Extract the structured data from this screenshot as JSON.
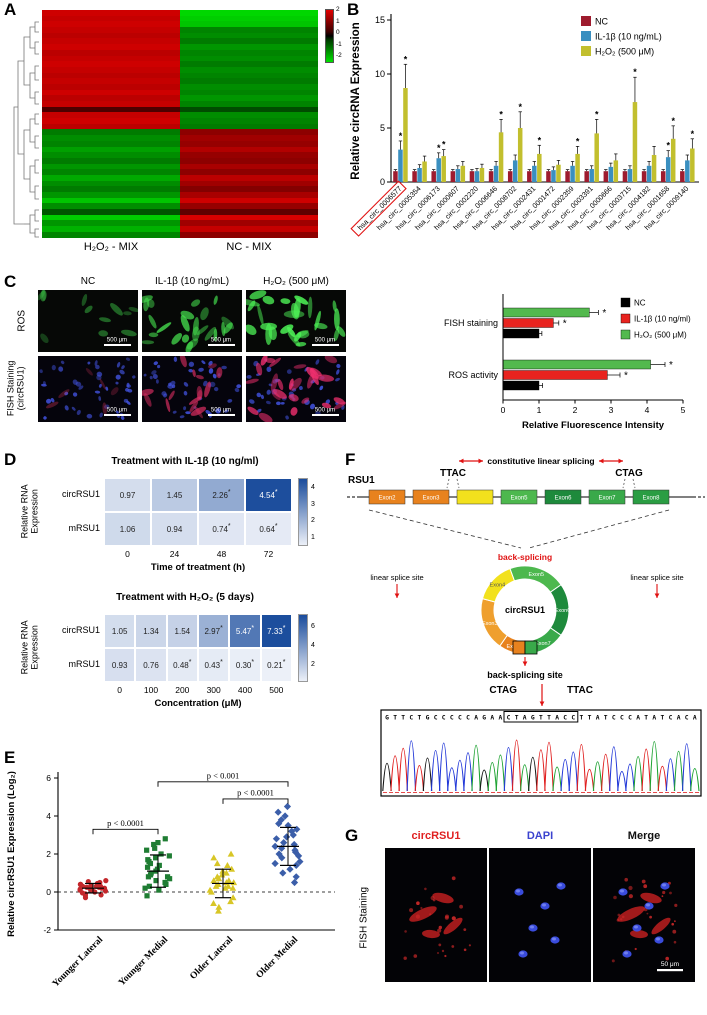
{
  "panels": {
    "A": {
      "label": "A"
    },
    "B": {
      "label": "B"
    },
    "C": {
      "label": "C",
      "col_headers": [
        "NC",
        "IL-1β (10 ng/mL)",
        "H₂O₂ (500 μM)"
      ],
      "row_labels": [
        "ROS",
        "FISH Staining (circRSU1)"
      ],
      "scalebar": "500 μm"
    },
    "D": {
      "label": "D"
    },
    "E": {
      "label": "E"
    },
    "F": {
      "label": "F",
      "gene_label": "RSU1",
      "splicing_label": "constitutive linear splicing",
      "ttac": "TTAC",
      "ctag": "CTAG",
      "exons": [
        {
          "name": "Exon2",
          "color": "#e8821e"
        },
        {
          "name": "Exon3",
          "color": "#e8821e"
        },
        {
          "name": "",
          "color": "#f2e11d"
        },
        {
          "name": "Exon5",
          "color": "#4db84e"
        },
        {
          "name": "Exon6",
          "color": "#1e8a3c"
        },
        {
          "name": "Exon7",
          "color": "#39a94a"
        },
        {
          "name": "Exon8",
          "color": "#2a9d43"
        }
      ],
      "back_splicing_label": "back-splicing",
      "circle_label": "circRSU1",
      "circle_segments": [
        {
          "name": "Exon5",
          "from": -20,
          "to": 55,
          "color": "#4db84e"
        },
        {
          "name": "Exon6",
          "from": 55,
          "to": 125,
          "color": "#1e8a3c"
        },
        {
          "name": "Exon7",
          "from": 125,
          "to": 178,
          "color": "#39a94a"
        },
        {
          "name": "Exon2",
          "from": 178,
          "to": 215,
          "color": "#e8821e"
        },
        {
          "name": "Exon3",
          "from": 215,
          "to": 285,
          "color": "#ef9f2e"
        },
        {
          "name": "Exon4",
          "from": 285,
          "to": 340,
          "color": "#f2e11d",
          "dark": true
        }
      ],
      "linear_site_label": "linear splice site",
      "back_site_label": "back-splicing site",
      "junction_left": "CTAG",
      "junction_right": "TTAC",
      "sequence": "GTTCTGCCCCCAGAACTAGTTACCTTATCCCATATCACA",
      "box_start": 15,
      "box_end": 23,
      "base_colors": {
        "A": "#1ea332",
        "C": "#2238d8",
        "G": "#141414",
        "T": "#e01e1e"
      }
    },
    "G": {
      "label": "G",
      "row_label": "FISH Staining",
      "titles": [
        {
          "text": "circRSU1",
          "color": "#e02020"
        },
        {
          "text": "DAPI",
          "color": "#3b43cf"
        },
        {
          "text": "Merge",
          "color": "#111111"
        }
      ],
      "scalebar": "50 μm"
    }
  },
  "chart_data": [
    {
      "type": "heatmap",
      "panel": "A",
      "columns": [
        "H₂O₂ - MIX",
        "NC - MIX"
      ],
      "colorbar_ticks": [
        2,
        1,
        0,
        -1,
        -2
      ],
      "value_range": [
        -2,
        2
      ],
      "rows": [
        [
          1.9,
          -2.0
        ],
        [
          1.8,
          -1.9
        ],
        [
          1.9,
          -1.8
        ],
        [
          1.8,
          -1.1
        ],
        [
          1.7,
          -1.2
        ],
        [
          1.8,
          -1.0
        ],
        [
          1.9,
          -1.3
        ],
        [
          1.7,
          -1.1
        ],
        [
          1.8,
          -1.2
        ],
        [
          1.9,
          -1.0
        ],
        [
          1.8,
          -1.2
        ],
        [
          1.7,
          -1.1
        ],
        [
          1.8,
          -1.0
        ],
        [
          1.7,
          -1.2
        ],
        [
          1.9,
          -1.1
        ],
        [
          1.7,
          -1.3
        ],
        [
          1.8,
          -1.1
        ],
        [
          0.5,
          -0.5
        ],
        [
          1.8,
          -1.2
        ],
        [
          1.9,
          -1.1
        ],
        [
          1.7,
          -1.0
        ],
        [
          -1.0,
          1.2
        ],
        [
          -1.2,
          1.4
        ],
        [
          -1.1,
          1.3
        ],
        [
          -1.4,
          1.6
        ],
        [
          -1.2,
          1.3
        ],
        [
          -1.0,
          1.2
        ],
        [
          -1.3,
          1.5
        ],
        [
          -1.1,
          1.2
        ],
        [
          -1.5,
          1.7
        ],
        [
          -1.2,
          1.4
        ],
        [
          -1.0,
          1.1
        ],
        [
          -1.3,
          1.5
        ],
        [
          -1.8,
          1.9
        ],
        [
          -1.2,
          1.3
        ],
        [
          -0.6,
          0.7
        ],
        [
          -1.9,
          2.0
        ],
        [
          -1.3,
          1.4
        ],
        [
          -1.6,
          1.8
        ],
        [
          -1.1,
          1.2
        ]
      ]
    },
    {
      "type": "bar",
      "panel": "B",
      "ylabel": "Relative circRNA Expression",
      "ymax": 15,
      "yticks": [
        0,
        5,
        10,
        15
      ],
      "highlight_category": 0,
      "categories": [
        "hsa_circ_0006577",
        "hsa_circ_0005354",
        "hsa_circ_0006173",
        "hsa_circ_0000607",
        "hsa_circ_0002220",
        "hsa_circ_0006646",
        "hsa_circ_0008702",
        "hsa_circ_0002431",
        "hsa_circ_0001472",
        "hsa_circ_0002359",
        "hsa_circ_0003391",
        "hsa_circ_0000666",
        "hsa_circ_0003715",
        "hsa_circ_0004182",
        "hsa_circ_0001658",
        "hsa_circ_0009140"
      ],
      "series": [
        {
          "name": "NC",
          "color": "#9e1b2e",
          "values": [
            1,
            1,
            1,
            1,
            1,
            1,
            1,
            1,
            1,
            1,
            1,
            1,
            1,
            1,
            1,
            1
          ],
          "errors": [
            0.15,
            0.15,
            0.15,
            0.15,
            0.15,
            0.15,
            0.15,
            0.15,
            0.15,
            0.15,
            0.15,
            0.15,
            0.15,
            0.15,
            0.15,
            0.15
          ],
          "sig": [
            false,
            false,
            false,
            false,
            false,
            false,
            false,
            false,
            false,
            false,
            false,
            false,
            false,
            false,
            false,
            false
          ]
        },
        {
          "name": "IL-1β (10 ng/mL)",
          "color": "#3a8fc0",
          "values": [
            3.0,
            1.3,
            2.2,
            1.2,
            1.0,
            1.5,
            2.0,
            1.5,
            1.1,
            1.5,
            1.2,
            1.4,
            1.2,
            1.5,
            2.3,
            2.0
          ],
          "errors": [
            0.8,
            0.3,
            0.5,
            0.3,
            0.25,
            0.4,
            0.5,
            0.4,
            0.3,
            0.4,
            0.3,
            0.35,
            0.3,
            0.4,
            0.6,
            0.5
          ],
          "sig": [
            true,
            false,
            true,
            false,
            false,
            false,
            false,
            false,
            false,
            false,
            false,
            false,
            false,
            false,
            true,
            false
          ]
        },
        {
          "name": "H₂O₂ (500 μM)",
          "color": "#c2bf2e",
          "values": [
            8.7,
            1.9,
            2.4,
            1.5,
            1.3,
            4.6,
            5.0,
            2.6,
            1.6,
            2.6,
            4.5,
            2.0,
            7.4,
            2.5,
            4.0,
            3.1
          ],
          "errors": [
            2.2,
            0.5,
            0.6,
            0.4,
            0.35,
            1.2,
            1.5,
            0.8,
            0.4,
            0.7,
            1.3,
            0.6,
            2.3,
            0.8,
            1.2,
            0.9
          ],
          "sig": [
            true,
            false,
            true,
            false,
            false,
            true,
            true,
            true,
            false,
            true,
            true,
            false,
            true,
            false,
            true,
            true
          ]
        }
      ]
    },
    {
      "type": "hbar",
      "panel": "C",
      "xlabel": "Relative Fluorescence Intensity",
      "xticks": [
        0,
        1,
        2,
        3,
        4,
        5
      ],
      "categories": [
        "FISH staining",
        "ROS activity"
      ],
      "series": [
        {
          "name": "NC",
          "color": "#000000",
          "values": [
            1.0,
            1.0
          ],
          "errors": [
            0.08,
            0.1
          ],
          "sig": [
            false,
            false
          ]
        },
        {
          "name": "IL-1β (10 ng/ml)",
          "color": "#e8231f",
          "values": [
            1.4,
            2.9
          ],
          "errors": [
            0.15,
            0.35
          ],
          "sig": [
            true,
            true
          ]
        },
        {
          "name": "H₂O₂ (500 μM)",
          "color": "#53b94e",
          "values": [
            2.4,
            4.1
          ],
          "errors": [
            0.25,
            0.4
          ],
          "sig": [
            true,
            true
          ]
        }
      ]
    },
    {
      "type": "heatmap",
      "panel": "D",
      "title": "Treatment with IL-1β (10 ng/ml)",
      "ylabel": "Relative RNA Expression",
      "xlabel": "Time of treatment (h)",
      "xticks": [
        "0",
        "24",
        "48",
        "72"
      ],
      "rows": [
        "circRSU1",
        "mRSU1"
      ],
      "values": [
        [
          0.97,
          1.45,
          2.26,
          4.54
        ],
        [
          1.06,
          0.94,
          0.74,
          0.64
        ]
      ],
      "sig": [
        [
          false,
          false,
          true,
          true
        ],
        [
          false,
          false,
          true,
          true
        ]
      ],
      "scale": {
        "min": 0.5,
        "max": 4.6,
        "ticks": [
          4,
          3,
          2,
          1
        ]
      }
    },
    {
      "type": "heatmap",
      "panel": "D",
      "title": "Treatment with H₂O₂ (5 days)",
      "ylabel": "Relative RNA Expression",
      "xlabel": "Concentration (μM)",
      "xticks": [
        "0",
        "100",
        "200",
        "300",
        "400",
        "500"
      ],
      "rows": [
        "circRSU1",
        "mRSU1"
      ],
      "values": [
        [
          1.05,
          1.34,
          1.54,
          2.97,
          5.47,
          7.33
        ],
        [
          0.93,
          0.76,
          0.48,
          0.43,
          0.3,
          0.21
        ]
      ],
      "sig": [
        [
          false,
          false,
          false,
          true,
          true,
          true
        ],
        [
          false,
          false,
          true,
          true,
          true,
          true
        ]
      ],
      "scale": {
        "min": 0.2,
        "max": 7.4,
        "ticks": [
          6,
          4,
          2
        ]
      }
    },
    {
      "type": "scatter",
      "panel": "E",
      "ylabel": "Relative circRSU1 Expression (Log₂)",
      "yticks": [
        -2,
        0,
        2,
        4,
        6
      ],
      "groups": [
        {
          "name": "Younger Lateral",
          "color": "#c3272b",
          "marker": "circle",
          "mean": 0.2,
          "sd": 0.25,
          "points": [
            0.1,
            0.3,
            -0.1,
            0.25,
            0.4,
            0.15,
            -0.2,
            0.5,
            0.2,
            0.35,
            0.05,
            -0.3,
            0.45,
            0.6,
            0.1,
            0.3,
            -0.15,
            0.55,
            0.2,
            0.0,
            0.4,
            0.3,
            -0.05,
            0.25,
            0.15
          ]
        },
        {
          "name": "Younger Medial",
          "color": "#1f7d33",
          "marker": "square",
          "mean": 1.1,
          "sd": 0.85,
          "points": [
            0.2,
            0.5,
            2.8,
            1.5,
            0.8,
            1.2,
            2.2,
            0.4,
            1.8,
            0.9,
            1.1,
            2.5,
            0.3,
            1.6,
            0.7,
            1.4,
            2.0,
            0.6,
            1.0,
            1.9,
            0.1,
            2.3,
            1.3,
            -0.2,
            0.8,
            1.7,
            2.6
          ]
        },
        {
          "name": "Older Lateral",
          "color": "#d8c626",
          "marker": "triangle",
          "mean": 0.45,
          "sd": 0.75,
          "points": [
            0.1,
            0.5,
            1.2,
            -0.5,
            0.8,
            0.3,
            1.8,
            -0.8,
            0.2,
            0.6,
            1.0,
            -0.3,
            0.4,
            1.5,
            0.0,
            0.7,
            -1.0,
            0.9,
            0.3,
            2.0,
            0.5,
            -0.6,
            1.1,
            0.2,
            0.6,
            1.4
          ]
        },
        {
          "name": "Older Medial",
          "color": "#3b5ea9",
          "marker": "diamond",
          "mean": 2.4,
          "sd": 1.0,
          "points": [
            1.5,
            2.8,
            3.5,
            1.0,
            2.2,
            4.0,
            1.8,
            2.5,
            3.0,
            0.8,
            2.0,
            3.8,
            1.2,
            2.6,
            4.5,
            1.6,
            2.3,
            3.2,
            0.5,
            2.9,
            1.9,
            3.6,
            2.1,
            4.2,
            2.4,
            3.3,
            1.4
          ]
        }
      ],
      "comparisons": [
        {
          "from": 0,
          "to": 1,
          "label": "p < 0.0001",
          "y": 3.3
        },
        {
          "from": 2,
          "to": 3,
          "label": "p < 0.0001",
          "y": 4.9
        },
        {
          "from": 1,
          "to": 3,
          "label": "p < 0.001",
          "y": 5.8
        }
      ]
    }
  ]
}
